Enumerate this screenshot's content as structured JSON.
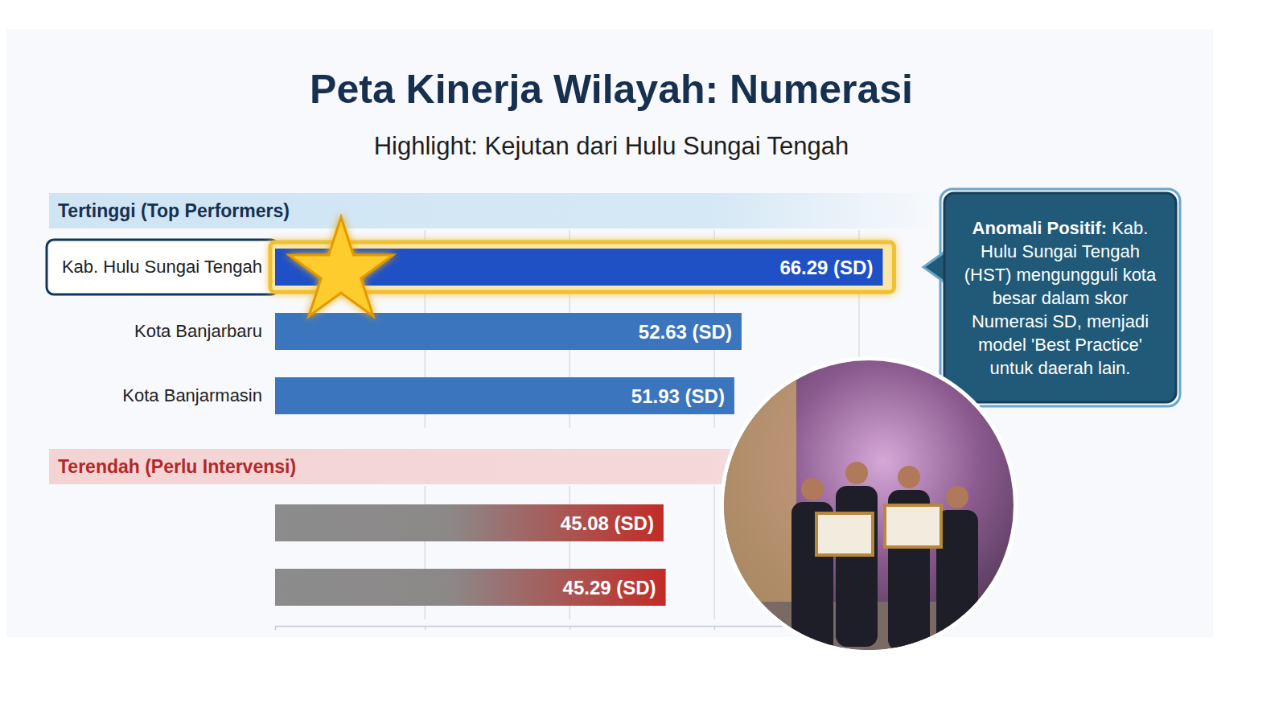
{
  "chart_data": {
    "type": "bar",
    "orientation": "horizontal",
    "title": "Peta Kinerja Wilayah: Numerasi",
    "subtitle": "Highlight: Kejutan dari Hulu Sungai Tengah",
    "groups": [
      {
        "label": "Tertinggi (Top Performers)",
        "count": 3
      },
      {
        "label": "Terendah (Perlu Intervensi)",
        "count": 2
      }
    ],
    "categories": [
      "Kab. Hulu Sungai Tengah",
      "Kota Banjarbaru",
      "Kota Banjarmasin",
      null,
      null
    ],
    "values": [
      66.29,
      52.63,
      51.93,
      45.08,
      45.29
    ],
    "value_labels": [
      "66.29 (SD)",
      "52.63 (SD)",
      "51.93 (SD)",
      "45.08 (SD)",
      "45.29 (SD)"
    ],
    "colors": [
      "#1f50c6",
      "#3b75bd",
      "#3b75bd",
      "#c22c27",
      "#c22c27"
    ],
    "xlim": [
      7.5,
      69.5
    ],
    "xticks": [
      22,
      36,
      50,
      64
    ],
    "grid": true,
    "tick_labels": false,
    "data_labels": true,
    "annotation": {
      "heading": "Anomali Positif:",
      "text": "Kab. Hulu Sungai Tengah (HST) mengungguli kota besar dalam skor Numerasi SD, menjadi model 'Best Practice' untuk daerah lain."
    }
  }
}
